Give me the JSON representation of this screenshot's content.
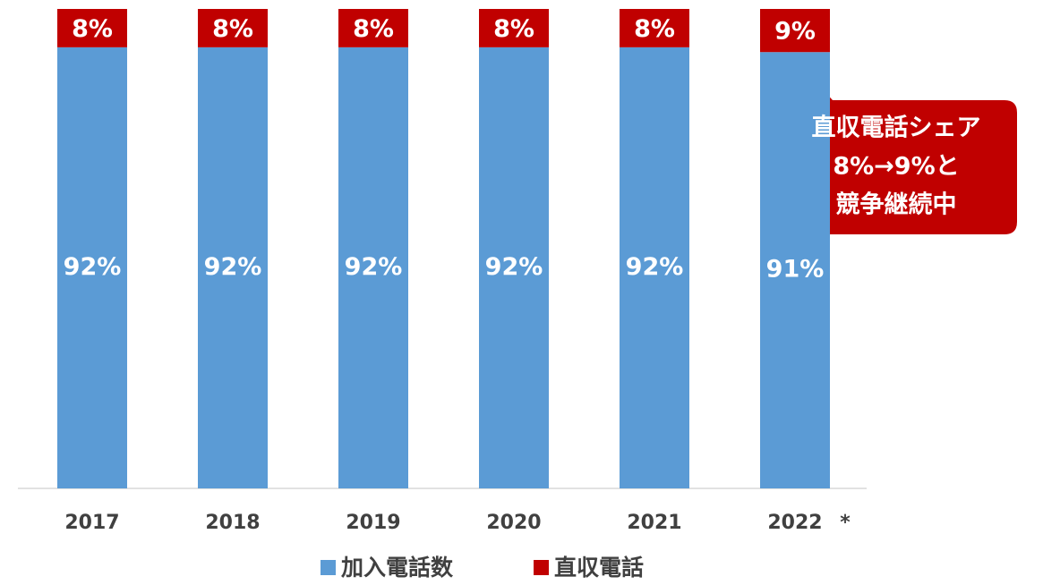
{
  "chart_data": {
    "type": "stacked_bar",
    "categories": [
      "2017",
      "2018",
      "2019",
      "2020",
      "2021",
      "2022"
    ],
    "category_note": "*",
    "series": [
      {
        "name": "加入電話数",
        "color": "#5b9bd5",
        "values": [
          92,
          92,
          92,
          92,
          92,
          91
        ],
        "value_labels": [
          "92%",
          "92%",
          "92%",
          "92%",
          "92%",
          "91%"
        ]
      },
      {
        "name": "直収電話",
        "color": "#c00000",
        "values": [
          8,
          8,
          8,
          8,
          8,
          9
        ],
        "value_labels": [
          "8%",
          "8%",
          "8%",
          "8%",
          "8%",
          "9%"
        ]
      }
    ],
    "ylim": [
      0,
      100
    ],
    "annotation": {
      "lines": [
        "直収電話シェア",
        "8%→9%と",
        "競争継続中"
      ],
      "color": "#c00000"
    }
  }
}
